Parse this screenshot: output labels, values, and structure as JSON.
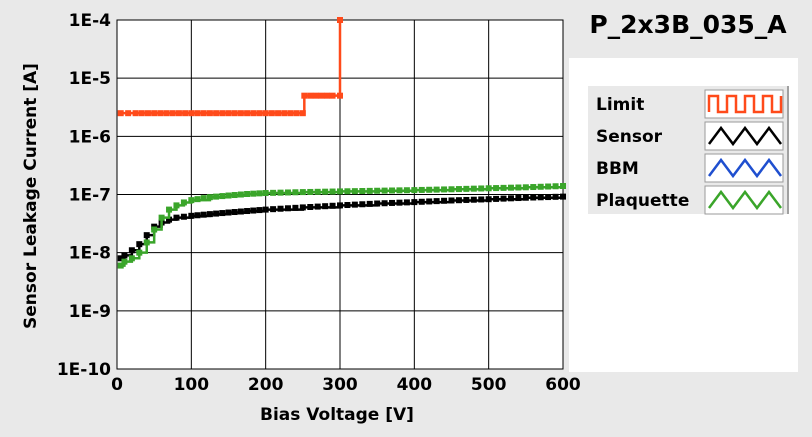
{
  "chart_data": {
    "type": "line",
    "title": "P_2x3B_035_A",
    "xlabel": "Bias Voltage [V]",
    "ylabel": "Sensor Leakage Current [A]",
    "xlim": [
      0,
      600
    ],
    "ylim": [
      1e-10,
      0.0001
    ],
    "yscale": "log",
    "grid": true,
    "legend_position": "right",
    "x_ticks": [
      "0",
      "100",
      "200",
      "300",
      "400",
      "500",
      "600"
    ],
    "y_ticks": [
      "1E-10",
      "1E-9",
      "1E-8",
      "1E-7",
      "1E-6",
      "1E-5",
      "1E-4"
    ],
    "series": [
      {
        "name": "Limit",
        "color": "#ff4a1a",
        "x": [
          5,
          25,
          50,
          75,
          100,
          125,
          150,
          175,
          200,
          225,
          250,
          252,
          260,
          275,
          290,
          300,
          300
        ],
        "y": [
          2.5e-06,
          2.5e-06,
          2.5e-06,
          2.5e-06,
          2.5e-06,
          2.5e-06,
          2.5e-06,
          2.5e-06,
          2.5e-06,
          2.5e-06,
          2.5e-06,
          5e-06,
          5e-06,
          5e-06,
          5e-06,
          5e-06,
          0.0001
        ]
      },
      {
        "name": "Sensor",
        "color": "#000000",
        "x": [
          5,
          10,
          20,
          30,
          40,
          50,
          60,
          70,
          80,
          100,
          125,
          150,
          175,
          200,
          250,
          300,
          350,
          400,
          450,
          500,
          550,
          600
        ],
        "y": [
          8e-09,
          9e-09,
          1.1e-08,
          1.4e-08,
          2e-08,
          2.8e-08,
          3.3e-08,
          3.7e-08,
          4e-08,
          4.3e-08,
          4.6e-08,
          4.9e-08,
          5.2e-08,
          5.5e-08,
          6e-08,
          6.5e-08,
          7e-08,
          7.4e-08,
          7.9e-08,
          8.3e-08,
          8.8e-08,
          9.2e-08
        ]
      },
      {
        "name": "BBM",
        "color": "#1f4fcf",
        "x": [],
        "y": []
      },
      {
        "name": "Plaquette",
        "color": "#3aa52a",
        "x": [
          5,
          10,
          20,
          30,
          40,
          50,
          60,
          70,
          80,
          90,
          100,
          125,
          150,
          175,
          200,
          250,
          300,
          350,
          400,
          450,
          500,
          550,
          600
        ],
        "y": [
          6e-09,
          7e-09,
          8e-09,
          1e-08,
          1.5e-08,
          2.5e-08,
          4e-08,
          5.5e-08,
          6.5e-08,
          7.3e-08,
          8e-08,
          9e-08,
          9.6e-08,
          1.02e-07,
          1.06e-07,
          1.1e-07,
          1.13e-07,
          1.16e-07,
          1.19e-07,
          1.23e-07,
          1.28e-07,
          1.33e-07,
          1.4e-07
        ]
      }
    ]
  }
}
